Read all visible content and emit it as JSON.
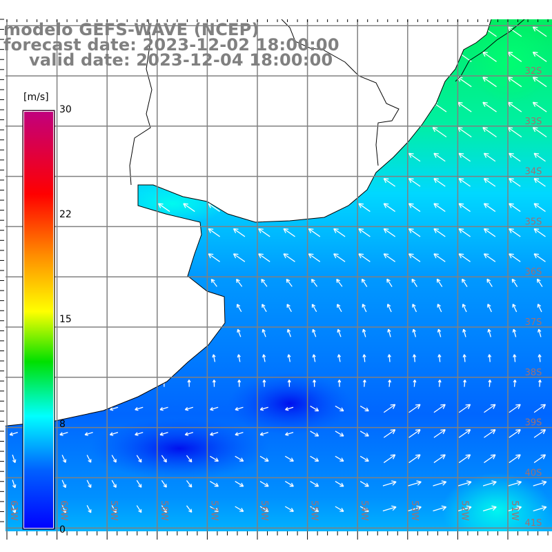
{
  "title": {
    "model": "modelo GEFS-WAVE (NCEP)",
    "forecast": "forecast date: 2023-12-02 18:00:00",
    "valid": "valid date: 2023-12-04 18:00:00"
  },
  "colorbar": {
    "unit": "[m/s]",
    "ticks": [
      "30",
      "22",
      "15",
      "8",
      "0"
    ],
    "min": 0,
    "max": 30,
    "colors": [
      "#0000ff",
      "#0080ff",
      "#00ffff",
      "#00e000",
      "#ffff00",
      "#ff8000",
      "#ff0000",
      "#c0007f"
    ]
  },
  "lat_labels": [
    "32S",
    "33S",
    "34S",
    "35S",
    "36S",
    "37S",
    "38S",
    "39S",
    "40S",
    "41S"
  ],
  "lon_labels": [
    "61W",
    "60W",
    "59W",
    "58W",
    "57W",
    "56W",
    "55W",
    "54W",
    "53W",
    "52W",
    "51W"
  ],
  "colors": {
    "grid": "#808080",
    "coast": "#000000",
    "label": "#a07070",
    "arrow": "#ffffff"
  }
}
